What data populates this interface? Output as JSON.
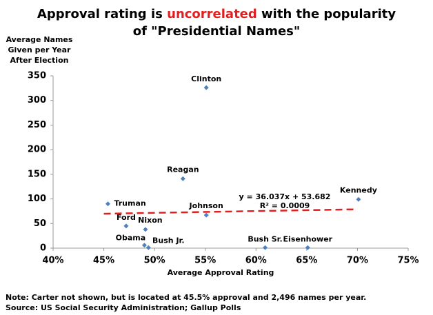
{
  "chart_data": {
    "type": "scatter",
    "title_parts": [
      "Approval rating is",
      "uncorrelated",
      "with the popularity",
      "of \"Presidential Names\""
    ],
    "y_label_lines": [
      "Average Names",
      "Given per Year",
      "After Election"
    ],
    "x_label": "Average Approval Rating",
    "labels": [
      "Truman",
      "Ford",
      "Nixon",
      "Obama",
      "Bush Jr.",
      "Clinton",
      "Reagan",
      "Johnson",
      "Bush Sr.",
      "Eisenhower",
      "Kennedy"
    ],
    "x": [
      45.4,
      47.2,
      49.1,
      49.0,
      49.4,
      55.1,
      52.8,
      55.1,
      60.9,
      65.1,
      70.1
    ],
    "values": [
      90,
      45,
      38,
      6,
      1,
      326,
      141,
      67,
      1,
      1,
      99
    ],
    "color": "#4f81bd",
    "trendline": {
      "x": [
        45,
        70
      ],
      "values": [
        69.9,
        78.9
      ],
      "color": "#e02020",
      "equation": "y = 36.037x + 53.682",
      "r2": "R² = 0.0009"
    },
    "xlim": [
      40,
      75
    ],
    "xticks": [
      {
        "value": 40,
        "label": "40%"
      },
      {
        "value": 45,
        "label": "45%"
      },
      {
        "value": 50,
        "label": "50%"
      },
      {
        "value": 55,
        "label": "55%"
      },
      {
        "value": 60,
        "label": "60%"
      },
      {
        "value": 65,
        "label": "65%"
      },
      {
        "value": 70,
        "label": "70%"
      },
      {
        "value": 75,
        "label": "75%"
      }
    ],
    "ylim": [
      0,
      350
    ],
    "yticks": [
      0,
      50,
      100,
      150,
      200,
      250,
      300,
      350
    ],
    "grid": false,
    "notes": [
      "Note: Carter not shown, but is located at 45.5% approval and 2,496 names per year.",
      "Source: US Social Security Administration; Gallup Polls"
    ]
  }
}
